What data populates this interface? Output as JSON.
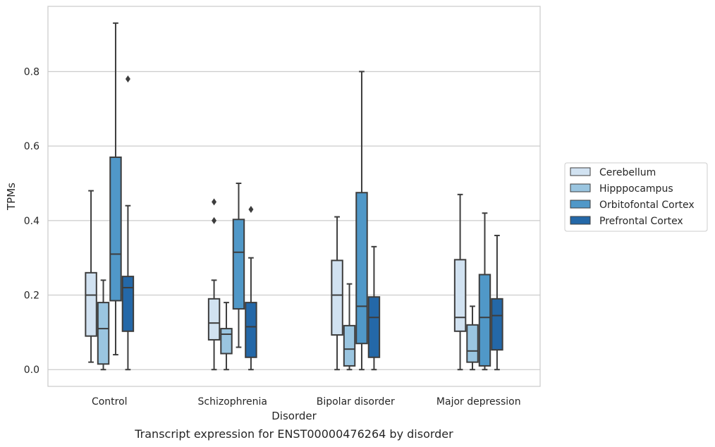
{
  "caption": "Transcript expression for ENST00000476264 by disorder",
  "chart_data": {
    "type": "box",
    "xlabel": "Disorder",
    "ylabel": "TPMs",
    "ylim": [
      -0.045,
      0.975
    ],
    "yticks": [
      0.0,
      0.2,
      0.4,
      0.6,
      0.8
    ],
    "ytick_labels": [
      "0.0",
      "0.2",
      "0.4",
      "0.6",
      "0.8"
    ],
    "grid": "horizontal",
    "legend_position": "right",
    "categories": [
      "Control",
      "Schizophrenia",
      "Bipolar disorder",
      "Major depression"
    ],
    "series": [
      {
        "name": "Cerebellum",
        "color": "#d1e2f1",
        "boxes": [
          {
            "whislo": 0.02,
            "q1": 0.09,
            "med": 0.2,
            "q3": 0.26,
            "whishi": 0.48,
            "fliers": []
          },
          {
            "whislo": 0.0,
            "q1": 0.08,
            "med": 0.125,
            "q3": 0.19,
            "whishi": 0.24,
            "fliers": [
              0.4,
              0.45
            ]
          },
          {
            "whislo": 0.0,
            "q1": 0.093,
            "med": 0.2,
            "q3": 0.293,
            "whishi": 0.41,
            "fliers": []
          },
          {
            "whislo": 0.0,
            "q1": 0.103,
            "med": 0.14,
            "q3": 0.295,
            "whishi": 0.47,
            "fliers": []
          }
        ]
      },
      {
        "name": "Hipppocampus",
        "color": "#9ac5e0",
        "boxes": [
          {
            "whislo": 0.0,
            "q1": 0.015,
            "med": 0.11,
            "q3": 0.18,
            "whishi": 0.24,
            "fliers": []
          },
          {
            "whislo": 0.0,
            "q1": 0.043,
            "med": 0.095,
            "q3": 0.11,
            "whishi": 0.18,
            "fliers": []
          },
          {
            "whislo": 0.0,
            "q1": 0.01,
            "med": 0.055,
            "q3": 0.118,
            "whishi": 0.23,
            "fliers": []
          },
          {
            "whislo": 0.0,
            "q1": 0.02,
            "med": 0.05,
            "q3": 0.12,
            "whishi": 0.17,
            "fliers": []
          }
        ]
      },
      {
        "name": "Orbitofontal Cortex",
        "color": "#5098c8",
        "boxes": [
          {
            "whislo": 0.04,
            "q1": 0.185,
            "med": 0.31,
            "q3": 0.57,
            "whishi": 0.93,
            "fliers": []
          },
          {
            "whislo": 0.06,
            "q1": 0.163,
            "med": 0.315,
            "q3": 0.403,
            "whishi": 0.5,
            "fliers": []
          },
          {
            "whislo": 0.0,
            "q1": 0.07,
            "med": 0.17,
            "q3": 0.475,
            "whishi": 0.8,
            "fliers": []
          },
          {
            "whislo": 0.0,
            "q1": 0.01,
            "med": 0.14,
            "q3": 0.255,
            "whishi": 0.42,
            "fliers": []
          }
        ]
      },
      {
        "name": "Prefrontal Cortex",
        "color": "#2468a8",
        "boxes": [
          {
            "whislo": 0.0,
            "q1": 0.103,
            "med": 0.22,
            "q3": 0.25,
            "whishi": 0.44,
            "fliers": [
              0.78
            ]
          },
          {
            "whislo": 0.0,
            "q1": 0.033,
            "med": 0.115,
            "q3": 0.18,
            "whishi": 0.3,
            "fliers": [
              0.43
            ]
          },
          {
            "whislo": 0.0,
            "q1": 0.033,
            "med": 0.14,
            "q3": 0.195,
            "whishi": 0.33,
            "fliers": []
          },
          {
            "whislo": 0.0,
            "q1": 0.053,
            "med": 0.145,
            "q3": 0.19,
            "whishi": 0.36,
            "fliers": []
          }
        ]
      }
    ]
  }
}
